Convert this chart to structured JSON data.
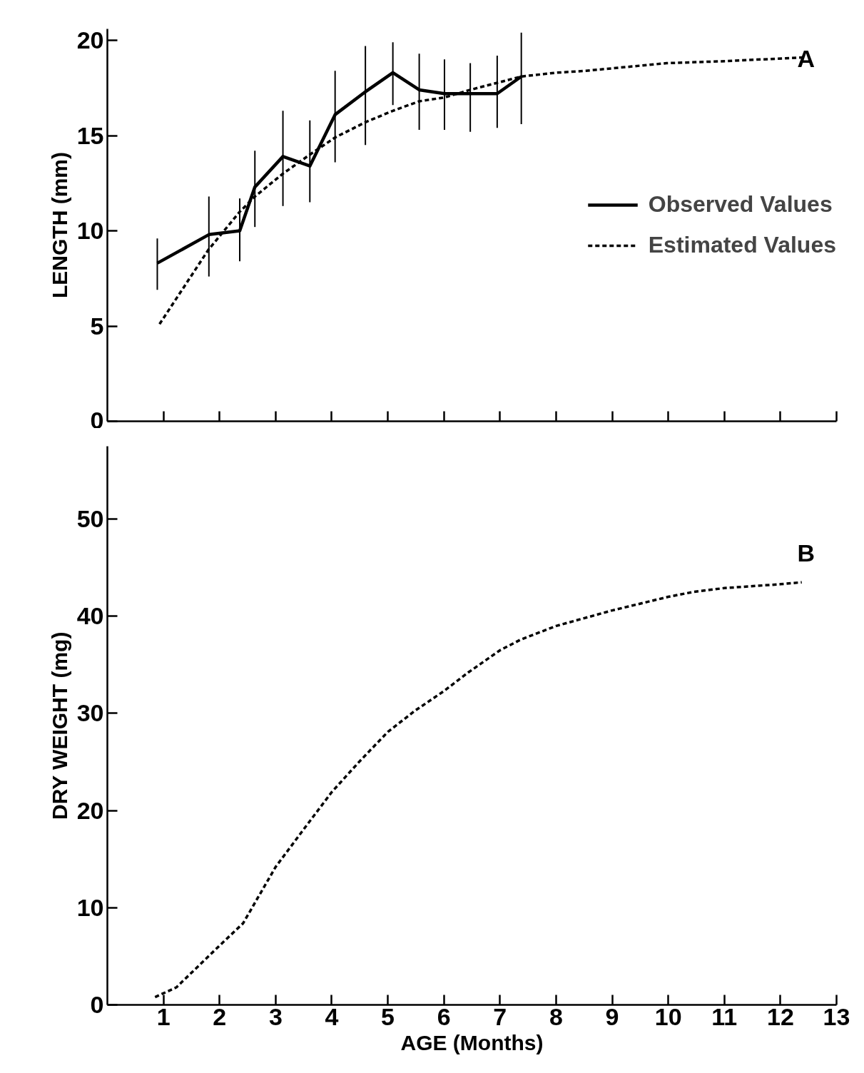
{
  "chart_data": [
    {
      "type": "line",
      "ylabel": "LENGTH (mm)",
      "annotations": [
        "A"
      ],
      "xlim": [
        0,
        13
      ],
      "xticks": [
        1,
        2,
        3,
        4,
        5,
        6,
        7,
        8,
        9,
        10,
        11,
        12,
        13
      ],
      "ylim": [
        0,
        20.6
      ],
      "yticks": [
        0,
        5,
        10,
        15,
        20
      ],
      "tick_labels": "y",
      "grid": false,
      "legend": "right",
      "marker": "none",
      "series": [
        {
          "name": "Observed Values",
          "color": "#000000",
          "line_style": "solid",
          "x": [
            0.89,
            1.81,
            2.36,
            2.63,
            3.13,
            3.61,
            4.06,
            4.6,
            5.09,
            5.56,
            6.01,
            6.47,
            6.95,
            7.38
          ],
          "values": [
            8.3,
            9.8,
            10.0,
            12.3,
            13.9,
            13.4,
            16.1,
            17.3,
            18.3,
            17.4,
            17.2,
            17.2,
            17.2,
            18.1
          ],
          "errors": [
            [
              6.9,
              9.6
            ],
            [
              7.6,
              11.8
            ],
            [
              8.4,
              11.7
            ],
            [
              10.2,
              14.2
            ],
            [
              11.3,
              16.3
            ],
            [
              11.5,
              15.8
            ],
            [
              13.6,
              18.4
            ],
            [
              14.5,
              19.7
            ],
            [
              16.6,
              19.9
            ],
            [
              15.3,
              19.3
            ],
            [
              15.3,
              19.0
            ],
            [
              15.2,
              18.8
            ],
            [
              15.4,
              19.2
            ],
            [
              15.6,
              20.4
            ]
          ]
        },
        {
          "name": "Estimated Values",
          "color": "#000000",
          "line_style": "dashed",
          "x": [
            0.93,
            1.8,
            2.36,
            2.63,
            3.13,
            3.61,
            4.06,
            4.6,
            5.09,
            5.56,
            6.01,
            6.47,
            7.38,
            8.0,
            8.53,
            9.97,
            10.94,
            12.42
          ],
          "values": [
            5.1,
            9.0,
            11.0,
            11.8,
            13.0,
            14.0,
            14.9,
            15.7,
            16.3,
            16.8,
            17.0,
            17.4,
            18.1,
            18.3,
            18.4,
            18.8,
            18.9,
            19.1
          ]
        }
      ]
    },
    {
      "type": "line",
      "xlabel": "AGE (Months)",
      "ylabel": "DRY WEIGHT (mg)",
      "annotations": [
        "B"
      ],
      "xlim": [
        0,
        13
      ],
      "xticks": [
        1,
        2,
        3,
        4,
        5,
        6,
        7,
        8,
        9,
        10,
        11,
        12,
        13
      ],
      "ylim": [
        0,
        57.5
      ],
      "yticks": [
        0,
        10,
        20,
        30,
        40,
        50
      ],
      "grid": false,
      "legend": false,
      "marker": "none",
      "series": [
        {
          "color": "#000000",
          "line_style": "dashed",
          "x": [
            0.85,
            1.23,
            2.0,
            2.42,
            3.0,
            3.53,
            4.0,
            4.47,
            5.0,
            5.49,
            6.0,
            6.43,
            7.0,
            7.37,
            8.0,
            9.0,
            10.0,
            10.44,
            11.0,
            12.0,
            12.38
          ],
          "values": [
            0.8,
            1.8,
            6.1,
            8.4,
            14.2,
            18.3,
            21.9,
            24.9,
            28.1,
            30.3,
            32.3,
            34.2,
            36.5,
            37.6,
            39.0,
            40.6,
            42.0,
            42.5,
            42.9,
            43.3,
            43.5
          ]
        }
      ]
    }
  ]
}
